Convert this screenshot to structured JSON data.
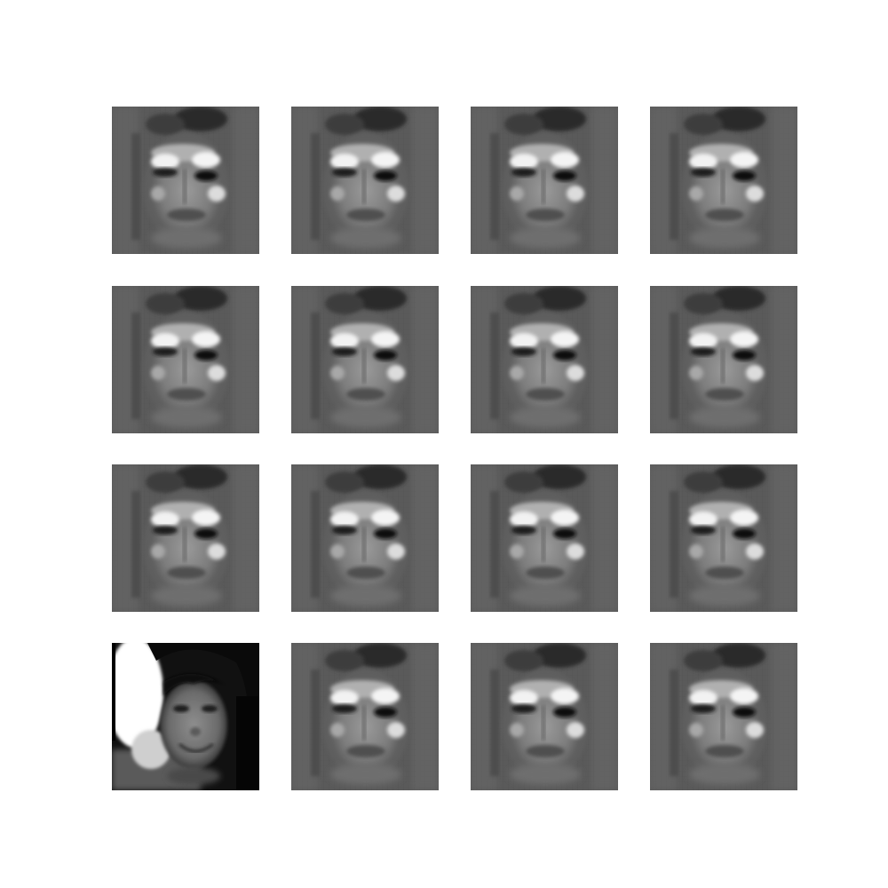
{
  "figure": {
    "rows": 4,
    "columns": 4,
    "background_color": "#ffffff",
    "tiles": [
      {
        "row": 0,
        "col": 0,
        "variant": "generated-face"
      },
      {
        "row": 0,
        "col": 1,
        "variant": "generated-face"
      },
      {
        "row": 0,
        "col": 2,
        "variant": "generated-face"
      },
      {
        "row": 0,
        "col": 3,
        "variant": "generated-face"
      },
      {
        "row": 1,
        "col": 0,
        "variant": "generated-face"
      },
      {
        "row": 1,
        "col": 1,
        "variant": "generated-face"
      },
      {
        "row": 1,
        "col": 2,
        "variant": "generated-face"
      },
      {
        "row": 1,
        "col": 3,
        "variant": "generated-face"
      },
      {
        "row": 2,
        "col": 0,
        "variant": "generated-face"
      },
      {
        "row": 2,
        "col": 1,
        "variant": "generated-face"
      },
      {
        "row": 2,
        "col": 2,
        "variant": "generated-face"
      },
      {
        "row": 2,
        "col": 3,
        "variant": "generated-face"
      },
      {
        "row": 3,
        "col": 0,
        "variant": "real-face"
      },
      {
        "row": 3,
        "col": 1,
        "variant": "generated-face"
      },
      {
        "row": 3,
        "col": 2,
        "variant": "generated-face"
      },
      {
        "row": 3,
        "col": 3,
        "variant": "generated-face"
      }
    ]
  }
}
